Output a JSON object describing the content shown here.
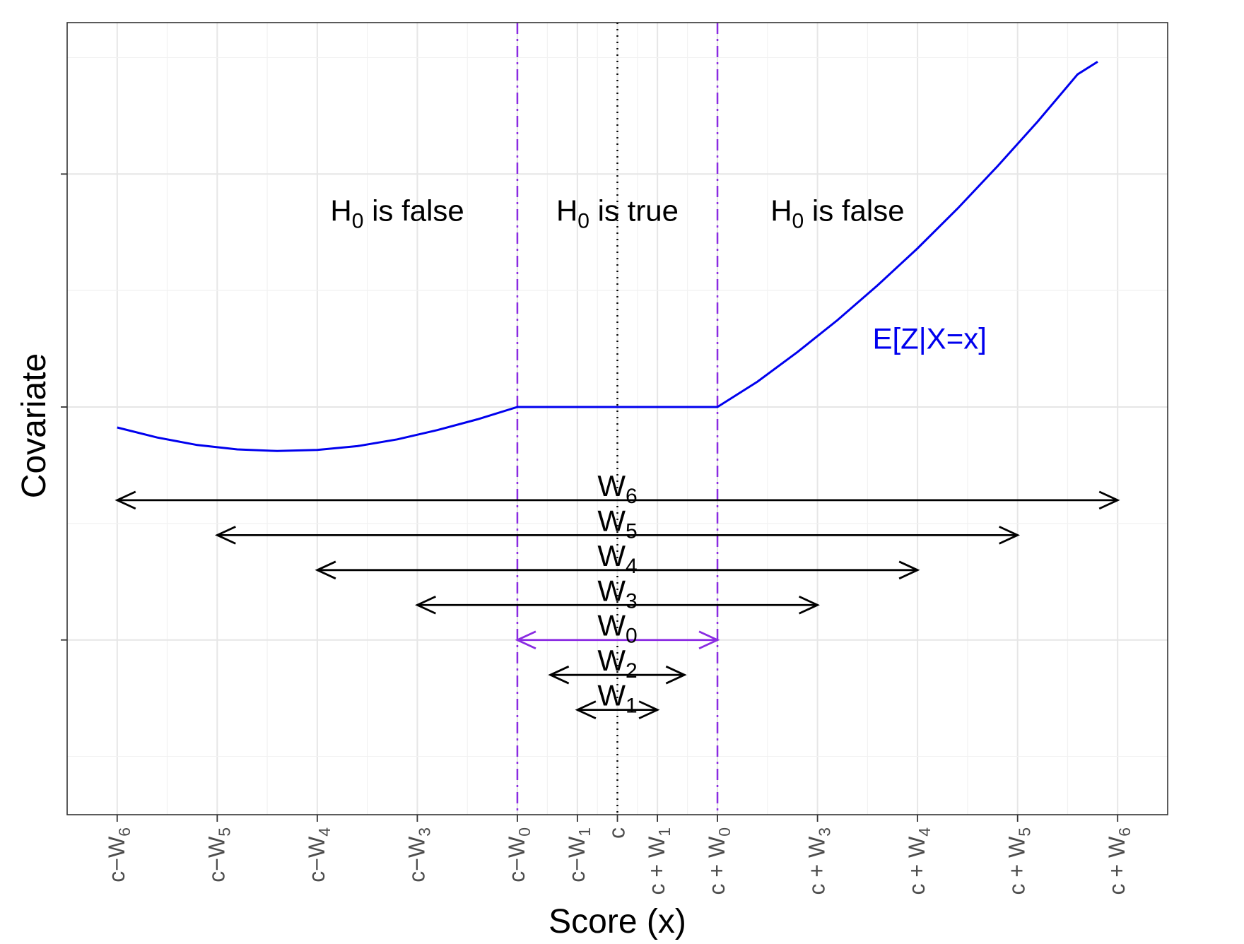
{
  "chart_data": {
    "type": "line",
    "xlabel": "Score (x)",
    "ylabel": "Covariate",
    "x_ticks": [
      {
        "pos": -5.0,
        "base": "c−W",
        "sub": "6"
      },
      {
        "pos": -4.0,
        "base": "c−W",
        "sub": "5"
      },
      {
        "pos": -3.0,
        "base": "c−W",
        "sub": "4"
      },
      {
        "pos": -2.0,
        "base": "c−W",
        "sub": "3"
      },
      {
        "pos": -1.0,
        "base": "c−W",
        "sub": "0"
      },
      {
        "pos": -0.4,
        "base": "c−W",
        "sub": "1"
      },
      {
        "pos": 0.0,
        "base": "c",
        "sub": ""
      },
      {
        "pos": 0.4,
        "base": "c + W",
        "sub": "1"
      },
      {
        "pos": 1.0,
        "base": "c + W",
        "sub": "0"
      },
      {
        "pos": 2.0,
        "base": "c + W",
        "sub": "3"
      },
      {
        "pos": 3.0,
        "base": "c + W",
        "sub": "4"
      },
      {
        "pos": 4.0,
        "base": "c + W",
        "sub": "5"
      },
      {
        "pos": 5.0,
        "base": "c + W",
        "sub": "6"
      }
    ],
    "xlim": [
      -5.5,
      5.5
    ],
    "ylim": [
      -1.75,
      1.65
    ],
    "y_major_ticks": [
      -1.0,
      0.0,
      1.0
    ],
    "grid": true,
    "series": [
      {
        "label": "E[Z|X=x]",
        "color": "#0000ee",
        "x": [
          -5.0,
          -4.6,
          -4.2,
          -3.8,
          -3.4,
          -3.0,
          -2.6,
          -2.2,
          -1.8,
          -1.4,
          -1.0,
          -0.5,
          0.0,
          0.5,
          1.0,
          1.4,
          1.8,
          2.2,
          2.6,
          3.0,
          3.4,
          3.8,
          4.2,
          4.6,
          4.8
        ],
        "y": [
          -0.088,
          -0.131,
          -0.163,
          -0.182,
          -0.189,
          -0.184,
          -0.168,
          -0.139,
          -0.099,
          -0.053,
          0.0,
          0.0,
          0.0,
          0.0,
          0.0,
          0.109,
          0.236,
          0.373,
          0.522,
          0.681,
          0.852,
          1.034,
          1.225,
          1.428,
          1.482
        ]
      }
    ],
    "cutoff_lines": [
      {
        "x": -1.0,
        "style": "dashdot",
        "color": "#8a2be2"
      },
      {
        "x": 0.0,
        "style": "dotted",
        "color": "#000000"
      },
      {
        "x": 1.0,
        "style": "dashdot",
        "color": "#8a2be2"
      }
    ],
    "region_labels": [
      {
        "x": -2.2,
        "y": 0.8,
        "base": "H",
        "sub": "0",
        "rest": " is false"
      },
      {
        "x": 0.0,
        "y": 0.8,
        "base": "H",
        "sub": "0",
        "rest": " is true"
      },
      {
        "x": 2.2,
        "y": 0.8,
        "base": "H",
        "sub": "0",
        "rest": " is false"
      }
    ],
    "windows": [
      {
        "base": "W",
        "sub": "6",
        "from": -5.0,
        "to": 5.0,
        "y": -0.4,
        "color": "#000000"
      },
      {
        "base": "W",
        "sub": "5",
        "from": -4.0,
        "to": 4.0,
        "y": -0.55,
        "color": "#000000"
      },
      {
        "base": "W",
        "sub": "4",
        "from": -3.0,
        "to": 3.0,
        "y": -0.7,
        "color": "#000000"
      },
      {
        "base": "W",
        "sub": "3",
        "from": -2.0,
        "to": 2.0,
        "y": -0.85,
        "color": "#000000"
      },
      {
        "base": "W",
        "sub": "0",
        "from": -1.0,
        "to": 1.0,
        "y": -1.0,
        "color": "#8a2be2"
      },
      {
        "base": "W",
        "sub": "2",
        "from": -0.67,
        "to": 0.67,
        "y": -1.15,
        "color": "#000000"
      },
      {
        "base": "W",
        "sub": "1",
        "from": -0.4,
        "to": 0.4,
        "y": -1.3,
        "color": "#000000"
      }
    ],
    "annotation": {
      "text": "E[Z|X=x]",
      "x": 2.55,
      "y": 0.25,
      "color": "#0000ee"
    }
  }
}
